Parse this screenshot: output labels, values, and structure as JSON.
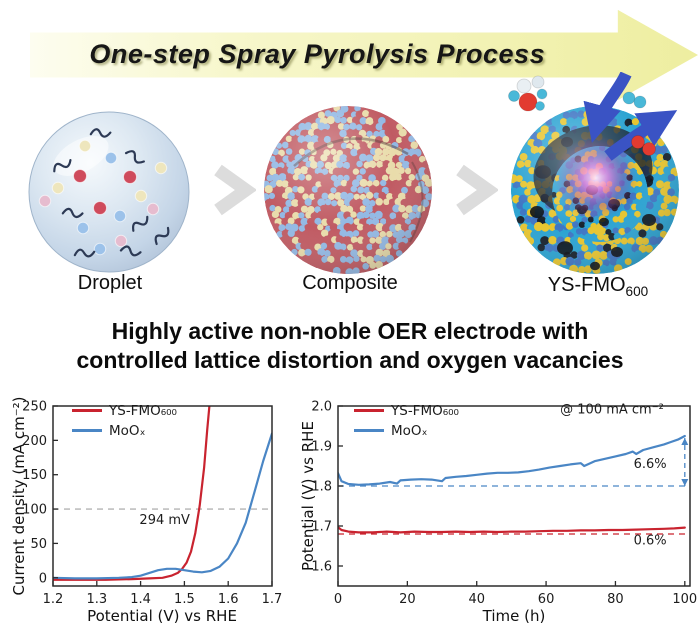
{
  "banner": {
    "title": "One-step Spray Pyrolysis Process",
    "arrow_color": "#eeeea0"
  },
  "process": {
    "steps": [
      {
        "label": "Droplet",
        "illustration": "droplet-sphere"
      },
      {
        "label": "Composite",
        "illustration": "composite-nanoparticle-sphere"
      },
      {
        "label_base": "YS-FMO",
        "label_sub": "600",
        "illustration": "yolk-shell-sphere"
      }
    ]
  },
  "heading": {
    "lines": [
      "Highly active non-noble OER electrode with",
      "controlled lattice distortion and oxygen vacancies"
    ]
  },
  "colors": {
    "red_series": "#c9232f",
    "blue_series": "#4a86c5",
    "reference_gray": "#b3b3b3"
  },
  "chart_data": [
    {
      "type": "line",
      "title": "",
      "xlabel": "Potential (V) vs RHE",
      "ylabel": "Current density (mA cm⁻²)",
      "xlim": [
        1.2,
        1.7
      ],
      "ylim": [
        -12,
        250
      ],
      "xticks": [
        "1.2",
        "1.3",
        "1.4",
        "1.5",
        "1.6",
        "1.7"
      ],
      "yticks": [
        "0",
        "50",
        "100",
        "150",
        "200",
        "250"
      ],
      "grid": false,
      "legend_position": "top-left",
      "legend": [
        {
          "label": "YS-FMO₆₀₀",
          "color": "#c9232f"
        },
        {
          "label": "MoOₓ",
          "color": "#4a86c5"
        }
      ],
      "series": [
        {
          "name": "YS-FMO600",
          "color": "#c9232f",
          "points": [
            [
              1.2,
              -3
            ],
            [
              1.26,
              -3
            ],
            [
              1.32,
              -3
            ],
            [
              1.38,
              -2
            ],
            [
              1.42,
              -1
            ],
            [
              1.45,
              0
            ],
            [
              1.47,
              3
            ],
            [
              1.485,
              7
            ],
            [
              1.495,
              13
            ],
            [
              1.505,
              22
            ],
            [
              1.515,
              38
            ],
            [
              1.525,
              65
            ],
            [
              1.535,
              105
            ],
            [
              1.545,
              160
            ],
            [
              1.552,
              215
            ],
            [
              1.557,
              250
            ]
          ]
        },
        {
          "name": "MoOx",
          "color": "#4a86c5",
          "points": [
            [
              1.2,
              0
            ],
            [
              1.25,
              -1
            ],
            [
              1.3,
              -1
            ],
            [
              1.35,
              0
            ],
            [
              1.38,
              1
            ],
            [
              1.4,
              3
            ],
            [
              1.42,
              7
            ],
            [
              1.44,
              11
            ],
            [
              1.46,
              13
            ],
            [
              1.48,
              13
            ],
            [
              1.5,
              11
            ],
            [
              1.52,
              9
            ],
            [
              1.54,
              8
            ],
            [
              1.56,
              10
            ],
            [
              1.58,
              16
            ],
            [
              1.6,
              28
            ],
            [
              1.62,
              50
            ],
            [
              1.64,
              80
            ],
            [
              1.66,
              125
            ],
            [
              1.68,
              170
            ],
            [
              1.7,
              210
            ]
          ]
        }
      ],
      "hlines": [
        {
          "y": 100,
          "color": "#b3b3b3"
        }
      ],
      "annotations": [
        {
          "text": "294 mV",
          "color": "#c9232f",
          "x": 1.455,
          "y": 78,
          "size": 15
        }
      ]
    },
    {
      "type": "line",
      "title": "",
      "xlabel": "Time (h)",
      "ylabel": "Potential (V) vs RHE",
      "xlim": [
        0,
        101.5
      ],
      "ylim": [
        1.55,
        2.0
      ],
      "xticks": [
        "0",
        "20",
        "40",
        "60",
        "80",
        "100"
      ],
      "yticks": [
        "1.6",
        "1.7",
        "1.8",
        "1.9",
        "2.0"
      ],
      "grid": false,
      "legend_position": "top-left",
      "legend": [
        {
          "label": "YS-FMO₆₀₀",
          "color": "#c9232f"
        },
        {
          "label": "MoOₓ",
          "color": "#4a86c5"
        }
      ],
      "series": [
        {
          "name": "YS-FMO600",
          "color": "#c9232f",
          "points": [
            [
              0,
              1.697
            ],
            [
              1,
              1.69
            ],
            [
              3,
              1.686
            ],
            [
              6,
              1.684
            ],
            [
              10,
              1.684
            ],
            [
              14,
              1.686
            ],
            [
              18,
              1.684
            ],
            [
              22,
              1.686
            ],
            [
              26,
              1.685
            ],
            [
              30,
              1.685
            ],
            [
              34,
              1.686
            ],
            [
              38,
              1.685
            ],
            [
              42,
              1.686
            ],
            [
              46,
              1.685
            ],
            [
              50,
              1.686
            ],
            [
              54,
              1.686
            ],
            [
              58,
              1.687
            ],
            [
              62,
              1.688
            ],
            [
              66,
              1.688
            ],
            [
              70,
              1.689
            ],
            [
              74,
              1.689
            ],
            [
              78,
              1.69
            ],
            [
              82,
              1.69
            ],
            [
              86,
              1.691
            ],
            [
              90,
              1.692
            ],
            [
              94,
              1.693
            ],
            [
              97,
              1.694
            ],
            [
              100,
              1.696
            ]
          ]
        },
        {
          "name": "MoOx",
          "color": "#4a86c5",
          "points": [
            [
              0,
              1.832
            ],
            [
              1,
              1.812
            ],
            [
              3,
              1.805
            ],
            [
              6,
              1.803
            ],
            [
              9,
              1.804
            ],
            [
              12,
              1.806
            ],
            [
              15,
              1.81
            ],
            [
              17,
              1.806
            ],
            [
              18,
              1.814
            ],
            [
              21,
              1.816
            ],
            [
              24,
              1.817
            ],
            [
              27,
              1.816
            ],
            [
              30,
              1.812
            ],
            [
              31,
              1.82
            ],
            [
              34,
              1.823
            ],
            [
              37,
              1.825
            ],
            [
              40,
              1.828
            ],
            [
              43,
              1.831
            ],
            [
              46,
              1.833
            ],
            [
              49,
              1.833
            ],
            [
              52,
              1.834
            ],
            [
              55,
              1.837
            ],
            [
              58,
              1.841
            ],
            [
              61,
              1.846
            ],
            [
              64,
              1.85
            ],
            [
              67,
              1.854
            ],
            [
              70,
              1.857
            ],
            [
              71,
              1.85
            ],
            [
              74,
              1.862
            ],
            [
              77,
              1.868
            ],
            [
              80,
              1.874
            ],
            [
              83,
              1.88
            ],
            [
              85,
              1.886
            ],
            [
              86,
              1.88
            ],
            [
              88,
              1.89
            ],
            [
              91,
              1.897
            ],
            [
              94,
              1.904
            ],
            [
              96,
              1.91
            ],
            [
              98,
              1.916
            ],
            [
              100,
              1.925
            ]
          ]
        }
      ],
      "hlines": [
        {
          "y": 1.8,
          "color": "#4a86c5"
        },
        {
          "y": 1.68,
          "color": "#c9232f"
        }
      ],
      "vline": {
        "x": 100,
        "y1": 1.8,
        "y2": 1.92,
        "color": "#4a86c5"
      },
      "annotations": [
        {
          "text": "@ 100 mA cm⁻²",
          "color": "#1a1a1a",
          "x": 79,
          "y": 1.981,
          "size": 13.5
        },
        {
          "text": "6.6%",
          "color": "#4a86c5",
          "x": 90,
          "y": 1.845,
          "size": 14.5
        },
        {
          "text": "0.6%",
          "color": "#c9232f",
          "x": 90,
          "y": 1.654,
          "size": 14.5
        }
      ]
    }
  ]
}
